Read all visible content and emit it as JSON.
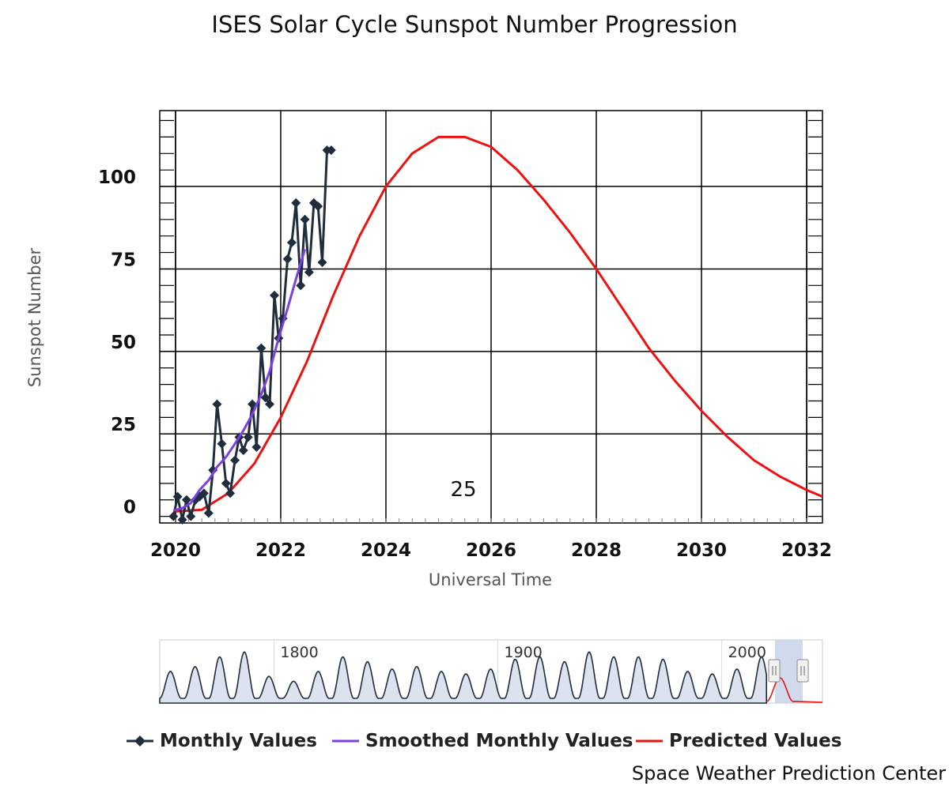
{
  "title": "ISES Solar Cycle Sunspot Number Progression",
  "credit": "Space Weather Prediction Center",
  "cycle_label": "25",
  "navigator": {
    "ticks": [
      "1800",
      "1900",
      "2000"
    ]
  },
  "legend": {
    "monthly": "Monthly Values",
    "smoothed": "Smoothed Monthly Values",
    "predicted": "Predicted Values"
  },
  "colors": {
    "monthly": "#1f2d3d",
    "smoothed": "#7b3fe4",
    "predicted": "#ee1111",
    "grid": "#000000",
    "navigator_mask": "#c9d3ea"
  },
  "chart_data": {
    "type": "line",
    "title": "ISES Solar Cycle Sunspot Number Progression",
    "xlabel": "Universal Time",
    "ylabel": "Sunspot Number",
    "xlim": [
      2019.7,
      2032.3
    ],
    "ylim": [
      -2,
      123
    ],
    "x_ticks": [
      2020,
      2022,
      2024,
      2026,
      2028,
      2030,
      2032
    ],
    "y_ticks": [
      0,
      25,
      50,
      75,
      100
    ],
    "grid": true,
    "legend_position": "bottom",
    "series": [
      {
        "name": "Monthly Values",
        "style": "line-with-diamond-markers",
        "x": [
          2019.96,
          2020.04,
          2020.13,
          2020.21,
          2020.29,
          2020.38,
          2020.46,
          2020.54,
          2020.63,
          2020.71,
          2020.79,
          2020.88,
          2020.96,
          2021.04,
          2021.13,
          2021.21,
          2021.29,
          2021.38,
          2021.46,
          2021.54,
          2021.63,
          2021.71,
          2021.79,
          2021.88,
          2021.96,
          2022.04,
          2022.13,
          2022.21,
          2022.29,
          2022.38,
          2022.46,
          2022.54,
          2022.63,
          2022.71,
          2022.79,
          2022.88,
          2022.96
        ],
        "y": [
          0,
          6,
          -1,
          5,
          0,
          5,
          6,
          7,
          1,
          14,
          34,
          22,
          10,
          7,
          17,
          24,
          20,
          24,
          34,
          21,
          51,
          36,
          34,
          67,
          54,
          60,
          78,
          83,
          95,
          70,
          90,
          74,
          95,
          94,
          77,
          111,
          111
        ]
      },
      {
        "name": "Smoothed Monthly Values",
        "style": "line",
        "x": [
          2019.96,
          2020.13,
          2020.29,
          2020.46,
          2020.63,
          2020.79,
          2020.96,
          2021.13,
          2021.29,
          2021.46,
          2021.63,
          2021.79,
          2021.96,
          2022.13,
          2022.29,
          2022.46
        ],
        "y": [
          1.8,
          2.5,
          4,
          8,
          11,
          15,
          18,
          22,
          26,
          31,
          37,
          44,
          54,
          63,
          72,
          81
        ]
      },
      {
        "name": "Predicted Values",
        "style": "line",
        "x": [
          2020.0,
          2020.5,
          2021.0,
          2021.5,
          2022.0,
          2022.5,
          2023.0,
          2023.5,
          2024.0,
          2024.5,
          2025.0,
          2025.5,
          2026.0,
          2026.5,
          2027.0,
          2027.5,
          2028.0,
          2028.5,
          2029.0,
          2029.5,
          2030.0,
          2030.5,
          2031.0,
          2031.5,
          2032.0,
          2032.3
        ],
        "y": [
          1.5,
          2,
          7,
          16,
          30,
          47,
          67,
          85,
          100,
          110,
          115,
          115,
          112,
          105,
          96,
          86,
          75,
          63,
          51,
          41,
          32,
          24,
          17,
          12,
          8,
          6
        ]
      }
    ]
  }
}
